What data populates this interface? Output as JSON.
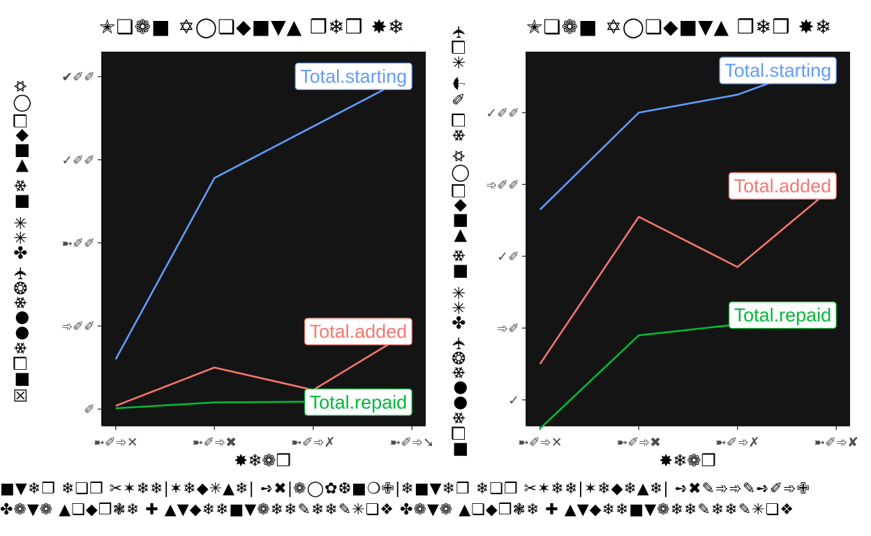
{
  "colors": {
    "panel_background": "#141414",
    "starting": "#619cff",
    "added": "#f8766d",
    "repaid": "#00ba38"
  },
  "caption": {
    "line1": "■▼❄❒ ❄❏❒ ✂✶❄❄|✶❄◆✳▲❄| ➺✖|❁◯✿❆■❍✙|❄■▼❄❒ ❄❏❒ ✂✶❄❄|✶❄◆❄▲❄| ➺✖✎➾➾✎➺✐➾✙",
    "line2": "✤❁▼❁ ▲❏◆❒❃❄ ✚ ▲▼◆❄❄■▼❁❄❄✎❄❄✎✳❏❖ ✤❁▼❁ ▲❏◆❒❃❄ ✚ ▲▼◆❄❄■▼❁❄❄✎❄❄✎✳❏❖"
  },
  "chart_data": [
    {
      "type": "line",
      "title": "✭❏❁■ ✡◯❏◆■▼▲ ❒❄❒ ✸❄",
      "xlabel": "✸❄❁❒",
      "ylabel": "☒■❒❄●●❄❂✈ ✤✳✳ ■❄ ▶■◆❒◯✡",
      "x": [
        1,
        2,
        3,
        4
      ],
      "x_tick_labels": [
        "➼✐➾✕",
        "➼✐➾✖",
        "➼✐➾✗",
        "➼✐➾➘"
      ],
      "y_tick_labels": [
        "✐",
        "➾✐✐",
        "➼✐✐",
        "✓✐✐",
        "✔✐✐"
      ],
      "y_ticks": [
        0,
        1,
        2,
        3,
        4
      ],
      "ylim": [
        -0.2,
        4.3
      ],
      "xlim": [
        0.86,
        4.14
      ],
      "series": [
        {
          "name": "Total.starting",
          "color": "#619cff",
          "values": [
            0.6,
            2.78,
            3.4,
            4.02
          ]
        },
        {
          "name": "Total.added",
          "color": "#f8766d",
          "values": [
            0.04,
            0.5,
            0.23,
            0.95
          ]
        },
        {
          "name": "Total.repaid",
          "color": "#00ba38",
          "values": [
            0.01,
            0.08,
            0.09,
            0.1
          ]
        }
      ]
    },
    {
      "type": "line",
      "title": "✭❏❁■ ✡◯❏◆■▼▲ ❒❄❒ ✸❄",
      "xlabel": "✸❄❁❒",
      "ylabel": "■❒❄●●❄❂✈ ✤✳✳ ■❄ ▶■◆❒◯✡ ❄❒ ✎☂ ✳❒✈",
      "x": [
        1,
        2,
        3,
        4
      ],
      "x_tick_labels": [
        "➼✐➾✕",
        "➼✐➾✖",
        "➼✐➾✗",
        "➼✐➾✘"
      ],
      "y_tick_labels": [
        "✓",
        "➾✐",
        "✓✐",
        "➾✐✐",
        "✓✐✐"
      ],
      "y_ticks": [
        1,
        2,
        3,
        4,
        5
      ],
      "ylim": [
        0.64,
        5.85
      ],
      "xlim": [
        0.86,
        4.14
      ],
      "series": [
        {
          "name": "Total.starting",
          "color": "#619cff",
          "values": [
            3.65,
            5.0,
            5.25,
            5.75
          ]
        },
        {
          "name": "Total.added",
          "color": "#f8766d",
          "values": [
            1.5,
            3.55,
            2.85,
            4.0
          ]
        },
        {
          "name": "Total.repaid",
          "color": "#00ba38",
          "values": [
            0.6,
            1.9,
            2.05,
            2.2
          ]
        }
      ]
    }
  ]
}
